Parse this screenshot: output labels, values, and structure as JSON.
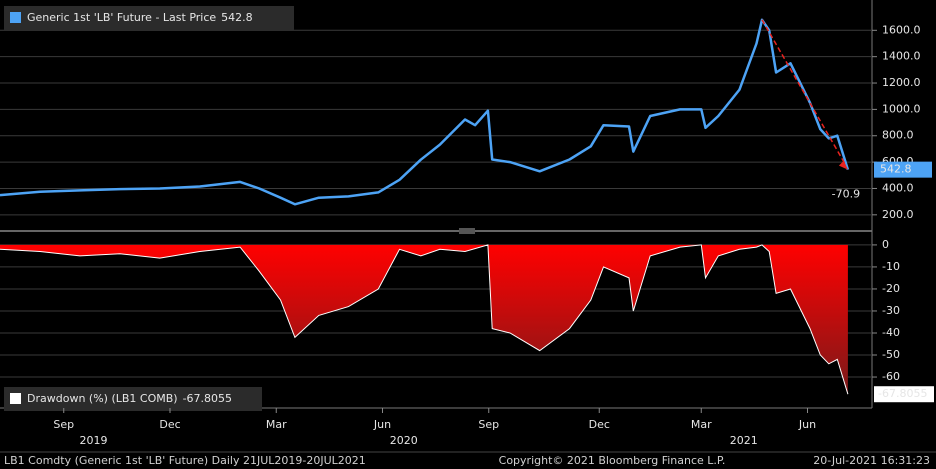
{
  "chart_data": [
    {
      "type": "line",
      "legend": "Generic 1st 'LB' Future - Last Price",
      "x": [
        2019.55,
        2019.644,
        2019.738,
        2019.832,
        2019.926,
        2020.02,
        2020.115,
        2020.16,
        2020.21,
        2020.244,
        2020.3,
        2020.37,
        2020.44,
        2020.49,
        2020.54,
        2020.585,
        2020.644,
        2020.668,
        2020.698,
        2020.708,
        2020.75,
        2020.82,
        2020.89,
        2020.94,
        2020.97,
        2021.03,
        2021.04,
        2021.08,
        2021.15,
        2021.2,
        2021.21,
        2021.24,
        2021.29,
        2021.33,
        2021.343,
        2021.36,
        2021.376,
        2021.41,
        2021.456,
        2021.48,
        2021.5,
        2021.52,
        2021.545
      ],
      "series": [
        {
          "name": "Generic 1st 'LB' Future - Last Price",
          "color": "#4da3f5",
          "values": [
            350,
            375,
            385,
            395,
            400,
            415,
            450,
            400,
            330,
            280,
            330,
            340,
            370,
            466,
            618,
            733,
            923,
            880,
            990,
            620,
            600,
            530,
            620,
            720,
            880,
            870,
            680,
            950,
            1000,
            1000,
            860,
            950,
            1150,
            1500,
            1680,
            1600,
            1280,
            1350,
            1050,
            850,
            780,
            800,
            542.8
          ]
        }
      ],
      "xlim": [
        2019.55,
        2021.55
      ],
      "ylim": [
        100,
        1830
      ],
      "yticks": [
        {
          "value": 200,
          "label": "200.0"
        },
        {
          "value": 400,
          "label": "400.0"
        },
        {
          "value": 600,
          "label": "600.0"
        },
        {
          "value": 800,
          "label": "800.0"
        },
        {
          "value": 1000,
          "label": "1000.0"
        },
        {
          "value": 1200,
          "label": "1200.0"
        },
        {
          "value": 1400,
          "label": "1400.0"
        },
        {
          "value": 1600,
          "label": "1600.0"
        }
      ],
      "grid": true,
      "annotation": "-70.9",
      "annotation_color": "#e8231f"
    },
    {
      "type": "area",
      "legend": "Drawdown (%) (LB1 COMB)",
      "x": [
        2019.55,
        2019.644,
        2019.738,
        2019.832,
        2019.926,
        2020.02,
        2020.115,
        2020.16,
        2020.21,
        2020.244,
        2020.3,
        2020.37,
        2020.44,
        2020.49,
        2020.54,
        2020.585,
        2020.644,
        2020.698,
        2020.708,
        2020.75,
        2020.82,
        2020.89,
        2020.94,
        2020.97,
        2021.03,
        2021.04,
        2021.08,
        2021.15,
        2021.2,
        2021.21,
        2021.24,
        2021.29,
        2021.33,
        2021.343,
        2021.36,
        2021.376,
        2021.41,
        2021.456,
        2021.48,
        2021.5,
        2021.52,
        2021.545
      ],
      "series": [
        {
          "name": "Drawdown (%) (LB1 COMB)",
          "color": "#ff0000",
          "values": [
            -2,
            -3,
            -5,
            -4,
            -6,
            -3,
            -1,
            -12,
            -25,
            -42,
            -32,
            -28,
            -20,
            -2,
            -5,
            -2,
            -3,
            0,
            -38,
            -40,
            -48,
            -38,
            -25,
            -10,
            -15,
            -30,
            -5,
            -1,
            0,
            -15,
            -5,
            -2,
            -1,
            0,
            -3,
            -22,
            -20,
            -38,
            -50,
            -54,
            -52,
            -67.8055
          ]
        }
      ],
      "xlim": [
        2019.55,
        2021.55
      ],
      "ylim": [
        -72.7,
        4.5
      ],
      "yticks": [
        0,
        -10,
        -20,
        -30,
        -40,
        -50,
        -60
      ],
      "grid": true,
      "xticks": [
        {
          "value": 2019.7,
          "label": "Sep"
        },
        {
          "value": 2019.95,
          "label": "Dec"
        },
        {
          "value": 2020.2,
          "label": "Mar"
        },
        {
          "value": 2020.45,
          "label": "Jun"
        },
        {
          "value": 2020.7,
          "label": "Sep"
        },
        {
          "value": 2020.96,
          "label": "Dec"
        },
        {
          "value": 2021.2,
          "label": "Mar"
        },
        {
          "value": 2021.45,
          "label": "Jun"
        }
      ],
      "year_ticks": [
        {
          "value": 2019.77,
          "label": "2019"
        },
        {
          "value": 2020.5,
          "label": "2020"
        },
        {
          "value": 2021.3,
          "label": "2021"
        }
      ]
    }
  ],
  "footer": {
    "left": "LB1 Comdty (Generic 1st 'LB' Future)  Daily 21JUL2019-20JUL2021",
    "center": "Copyright© 2021 Bloomberg Finance L.P.",
    "right": "20-Jul-2021 16:31:23"
  }
}
